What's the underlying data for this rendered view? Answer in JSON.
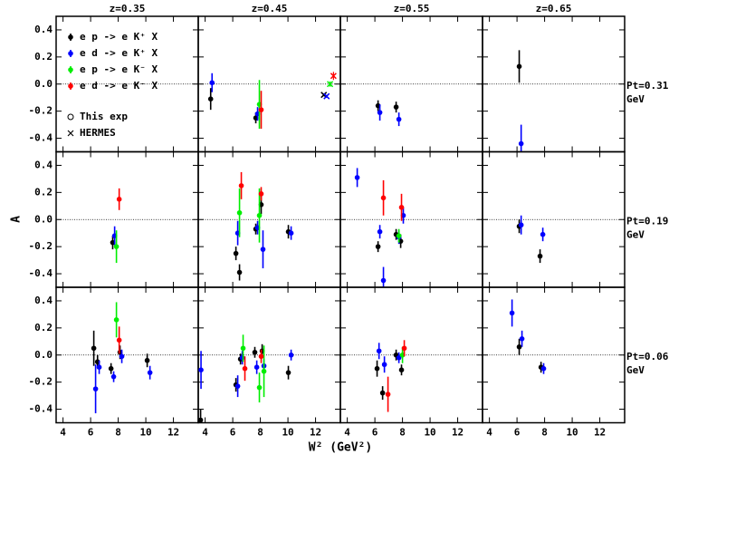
{
  "chart_data": {
    "type": "scatter",
    "xlabel": "W² (GeV²)",
    "ylabel": "A",
    "xlim": [
      3.5,
      13.8
    ],
    "ylim": [
      -0.5,
      0.5
    ],
    "xticks": [
      4,
      6,
      8,
      10,
      12
    ],
    "yticks": [
      -0.4,
      -0.2,
      {
        "value": 0,
        "label": "0.0"
      },
      0.2,
      0.4
    ],
    "zero_line": true,
    "columns": [
      "z=0.35",
      "z=0.45",
      "z=0.55",
      "z=0.65"
    ],
    "rows": [
      {
        "label": "Pt=0.31",
        "unit": "GeV"
      },
      {
        "label": "Pt=0.19",
        "unit": "GeV"
      },
      {
        "label": "Pt=0.06",
        "unit": "GeV"
      }
    ],
    "series": [
      {
        "name": "e p -> e K⁺ X",
        "color": "#000000"
      },
      {
        "name": "e d -> e K⁺ X",
        "color": "#0000ff"
      },
      {
        "name": "e p -> e K⁻ X",
        "color": "#00ee00"
      },
      {
        "name": "e d -> e K⁻ X",
        "color": "#ff0000"
      }
    ],
    "markers": [
      "This exp",
      "HERMES"
    ],
    "panels": [
      {
        "series": [
          {
            "x": [],
            "values": [],
            "errors": []
          },
          {
            "x": [],
            "values": [],
            "errors": []
          },
          {
            "x": [],
            "values": [],
            "errors": []
          },
          {
            "x": [],
            "values": [],
            "errors": []
          }
        ]
      },
      {
        "series": [
          {
            "x": [
              4.4,
              7.67
            ],
            "values": [
              -0.11,
              -0.25
            ],
            "errors": [
              0.08,
              0.04
            ]
          },
          {
            "x": [
              4.5,
              7.8
            ],
            "values": [
              0.01,
              -0.22
            ],
            "errors": [
              0.07,
              0.05
            ]
          },
          {
            "x": [
              7.93
            ],
            "values": [
              -0.15
            ],
            "errors": [
              0.18
            ]
          },
          {
            "x": [
              8.06
            ],
            "values": [
              -0.19
            ],
            "errors": [
              0.14
            ]
          }
        ],
        "hermes": [
          {
            "x": [
              12.6
            ],
            "values": [
              -0.08
            ],
            "errors": [
              0.01
            ]
          },
          {
            "x": [
              12.8
            ],
            "values": [
              -0.09
            ],
            "errors": [
              0.01
            ]
          },
          {
            "x": [
              13.05
            ],
            "values": [
              0.0
            ],
            "errors": [
              0.02
            ]
          },
          {
            "x": [
              13.3
            ],
            "values": [
              0.06
            ],
            "errors": [
              0.03
            ]
          }
        ]
      },
      {
        "series": [
          {
            "x": [
              6.23,
              7.54
            ],
            "values": [
              -0.16,
              -0.17
            ],
            "errors": [
              0.04,
              0.04
            ]
          },
          {
            "x": [
              6.36,
              7.74
            ],
            "values": [
              -0.21,
              -0.26
            ],
            "errors": [
              0.06,
              0.05
            ]
          },
          {
            "x": [],
            "values": [],
            "errors": []
          },
          {
            "x": [],
            "values": [],
            "errors": []
          }
        ]
      },
      {
        "series": [
          {
            "x": [
              6.16
            ],
            "values": [
              0.13
            ],
            "errors": [
              0.12
            ]
          },
          {
            "x": [
              6.3
            ],
            "values": [
              -0.44
            ],
            "errors": [
              0.14
            ]
          },
          {
            "x": [],
            "values": [],
            "errors": []
          },
          {
            "x": [],
            "values": [],
            "errors": []
          }
        ]
      },
      {
        "series": [
          {
            "x": [
              7.6
            ],
            "values": [
              -0.17
            ],
            "errors": [
              0.05
            ]
          },
          {
            "x": [
              7.74
            ],
            "values": [
              -0.12
            ],
            "errors": [
              0.07
            ]
          },
          {
            "x": [
              7.87
            ],
            "values": [
              -0.2
            ],
            "errors": [
              0.12
            ]
          },
          {
            "x": [
              8.07
            ],
            "values": [
              0.15
            ],
            "errors": [
              0.08
            ]
          }
        ]
      },
      {
        "series": [
          {
            "x": [
              6.23,
              6.49,
              7.67,
              8.06,
              10.03
            ],
            "values": [
              -0.25,
              -0.39,
              -0.07,
              0.11,
              -0.09
            ],
            "errors": [
              0.05,
              0.06,
              0.04,
              0.07,
              0.05
            ]
          },
          {
            "x": [
              6.36,
              7.8,
              8.19,
              10.23
            ],
            "values": [
              -0.1,
              -0.06,
              -0.22,
              -0.1
            ],
            "errors": [
              0.09,
              0.05,
              0.14,
              0.05
            ]
          },
          {
            "x": [
              6.49,
              7.93
            ],
            "values": [
              0.05,
              0.03
            ],
            "errors": [
              0.18,
              0.2
            ]
          },
          {
            "x": [
              6.62,
              8.06
            ],
            "values": [
              0.25,
              0.19
            ],
            "errors": [
              0.1,
              0.05
            ]
          }
        ]
      },
      {
        "series": [
          {
            "x": [
              6.23,
              7.54,
              7.87
            ],
            "values": [
              -0.2,
              -0.11,
              -0.16
            ],
            "errors": [
              0.04,
              0.04,
              0.05
            ]
          },
          {
            "x": [
              4.72,
              6.36,
              6.62,
              7.74,
              8.06
            ],
            "values": [
              0.31,
              -0.09,
              -0.45,
              -0.13,
              0.03
            ],
            "errors": [
              0.07,
              0.05,
              0.1,
              0.05,
              0.06
            ]
          },
          {
            "x": [
              7.74
            ],
            "values": [
              -0.12
            ],
            "errors": [
              0.05
            ]
          },
          {
            "x": [
              6.62,
              7.93
            ],
            "values": [
              0.16,
              0.09
            ],
            "errors": [
              0.13,
              0.1
            ]
          }
        ]
      },
      {
        "series": [
          {
            "x": [
              6.16,
              7.67
            ],
            "values": [
              -0.05,
              -0.27
            ],
            "errors": [
              0.05,
              0.05
            ]
          },
          {
            "x": [
              6.3,
              7.87
            ],
            "values": [
              -0.04,
              -0.11
            ],
            "errors": [
              0.07,
              0.05
            ]
          },
          {
            "x": [],
            "values": [],
            "errors": []
          },
          {
            "x": [],
            "values": [],
            "errors": []
          }
        ]
      },
      {
        "series": [
          {
            "x": [
              6.23,
              6.5,
              7.48,
              8.13,
              10.1
            ],
            "values": [
              0.05,
              -0.05,
              -0.1,
              0.02,
              -0.04
            ],
            "errors": [
              0.13,
              0.05,
              0.04,
              0.05,
              0.05
            ]
          },
          {
            "x": [
              6.36,
              6.62,
              7.67,
              8.26,
              10.3
            ],
            "values": [
              -0.25,
              -0.09,
              -0.16,
              -0.01,
              -0.13
            ],
            "errors": [
              0.18,
              0.05,
              0.04,
              0.05,
              0.05
            ]
          },
          {
            "x": [
              7.87
            ],
            "values": [
              0.26
            ],
            "errors": [
              0.13
            ]
          },
          {
            "x": [
              8.07
            ],
            "values": [
              0.11
            ],
            "errors": [
              0.1
            ]
          }
        ]
      },
      {
        "series": [
          {
            "x": [
              3.67,
              6.23,
              6.56,
              7.6,
              8.13,
              10.03
            ],
            "values": [
              -0.48,
              -0.22,
              -0.03,
              0.02,
              0.03,
              -0.13
            ],
            "errors": [
              0.08,
              0.05,
              0.04,
              0.04,
              0.05,
              0.05
            ]
          },
          {
            "x": [
              3.7,
              6.36,
              6.69,
              7.74,
              8.26,
              10.23
            ],
            "values": [
              -0.11,
              -0.23,
              -0.02,
              -0.09,
              -0.08,
              0.0
            ],
            "errors": [
              0.14,
              0.08,
              0.05,
              0.05,
              0.05,
              0.04
            ]
          },
          {
            "x": [
              6.75,
              7.93,
              8.26
            ],
            "values": [
              0.05,
              -0.24,
              -0.12
            ],
            "errors": [
              0.1,
              0.11,
              0.19
            ]
          },
          {
            "x": [
              6.88,
              8.06
            ],
            "values": [
              -0.1,
              -0.01
            ],
            "errors": [
              0.09,
              0.05
            ]
          }
        ]
      },
      {
        "series": [
          {
            "x": [
              6.16,
              6.56,
              7.54,
              7.93
            ],
            "values": [
              -0.1,
              -0.28,
              0.0,
              -0.11
            ],
            "errors": [
              0.06,
              0.05,
              0.04,
              0.04
            ]
          },
          {
            "x": [
              6.3,
              6.69,
              7.74
            ],
            "values": [
              0.03,
              -0.07,
              -0.02
            ],
            "errors": [
              0.06,
              0.06,
              0.04
            ]
          },
          {
            "x": [
              8.0
            ],
            "values": [
              0.0
            ],
            "errors": [
              0.06
            ]
          },
          {
            "x": [
              6.95,
              8.13
            ],
            "values": [
              -0.29,
              0.05
            ],
            "errors": [
              0.13,
              0.06
            ]
          }
        ]
      },
      {
        "series": [
          {
            "x": [
              6.16,
              7.74
            ],
            "values": [
              0.06,
              -0.09
            ],
            "errors": [
              0.06,
              0.04
            ]
          },
          {
            "x": [
              5.64,
              6.36,
              7.93
            ],
            "values": [
              0.31,
              0.12,
              -0.1
            ],
            "errors": [
              0.1,
              0.06,
              0.04
            ]
          },
          {
            "x": [],
            "values": [],
            "errors": []
          },
          {
            "x": [],
            "values": [],
            "errors": []
          }
        ]
      }
    ]
  }
}
